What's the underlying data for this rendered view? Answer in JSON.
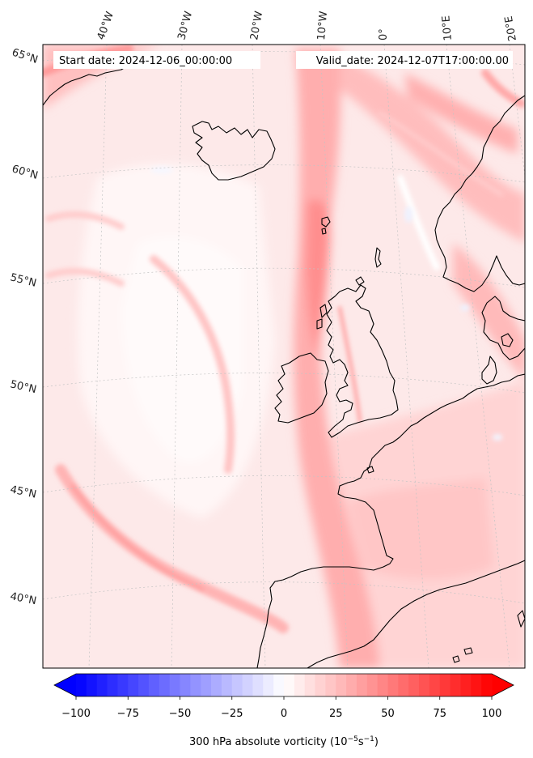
{
  "header": {
    "start_date": "Start date: 2024-12-06_00:00:00",
    "valid_date": "Valid_date: 2024-12-07T17:00:00.00"
  },
  "map": {
    "lon_labels": [
      "40°W",
      "30°W",
      "20°W",
      "10°W",
      "0°",
      "10°E",
      "20°E"
    ],
    "lat_labels": [
      "65°N",
      "60°N",
      "55°N",
      "50°N",
      "45°N",
      "40°N"
    ],
    "coastline_color": "#000000",
    "gridline_color": "#bbbbbb"
  },
  "colorbar": {
    "label": "300 hPa absolute vorticity (10",
    "label_exp": "−5",
    "label_unit": "s",
    "label_unit_exp": "−1",
    "label_close": ")",
    "min": -100,
    "max": 100,
    "ticks": [
      "−100",
      "−75",
      "−50",
      "−25",
      "0",
      "25",
      "50",
      "75",
      "100"
    ],
    "tick_values": [
      -100,
      -75,
      -50,
      -25,
      0,
      25,
      50,
      75,
      100
    ],
    "low_color": "#0000ff",
    "mid_color": "#ffffff",
    "high_color": "#ff0000"
  }
}
